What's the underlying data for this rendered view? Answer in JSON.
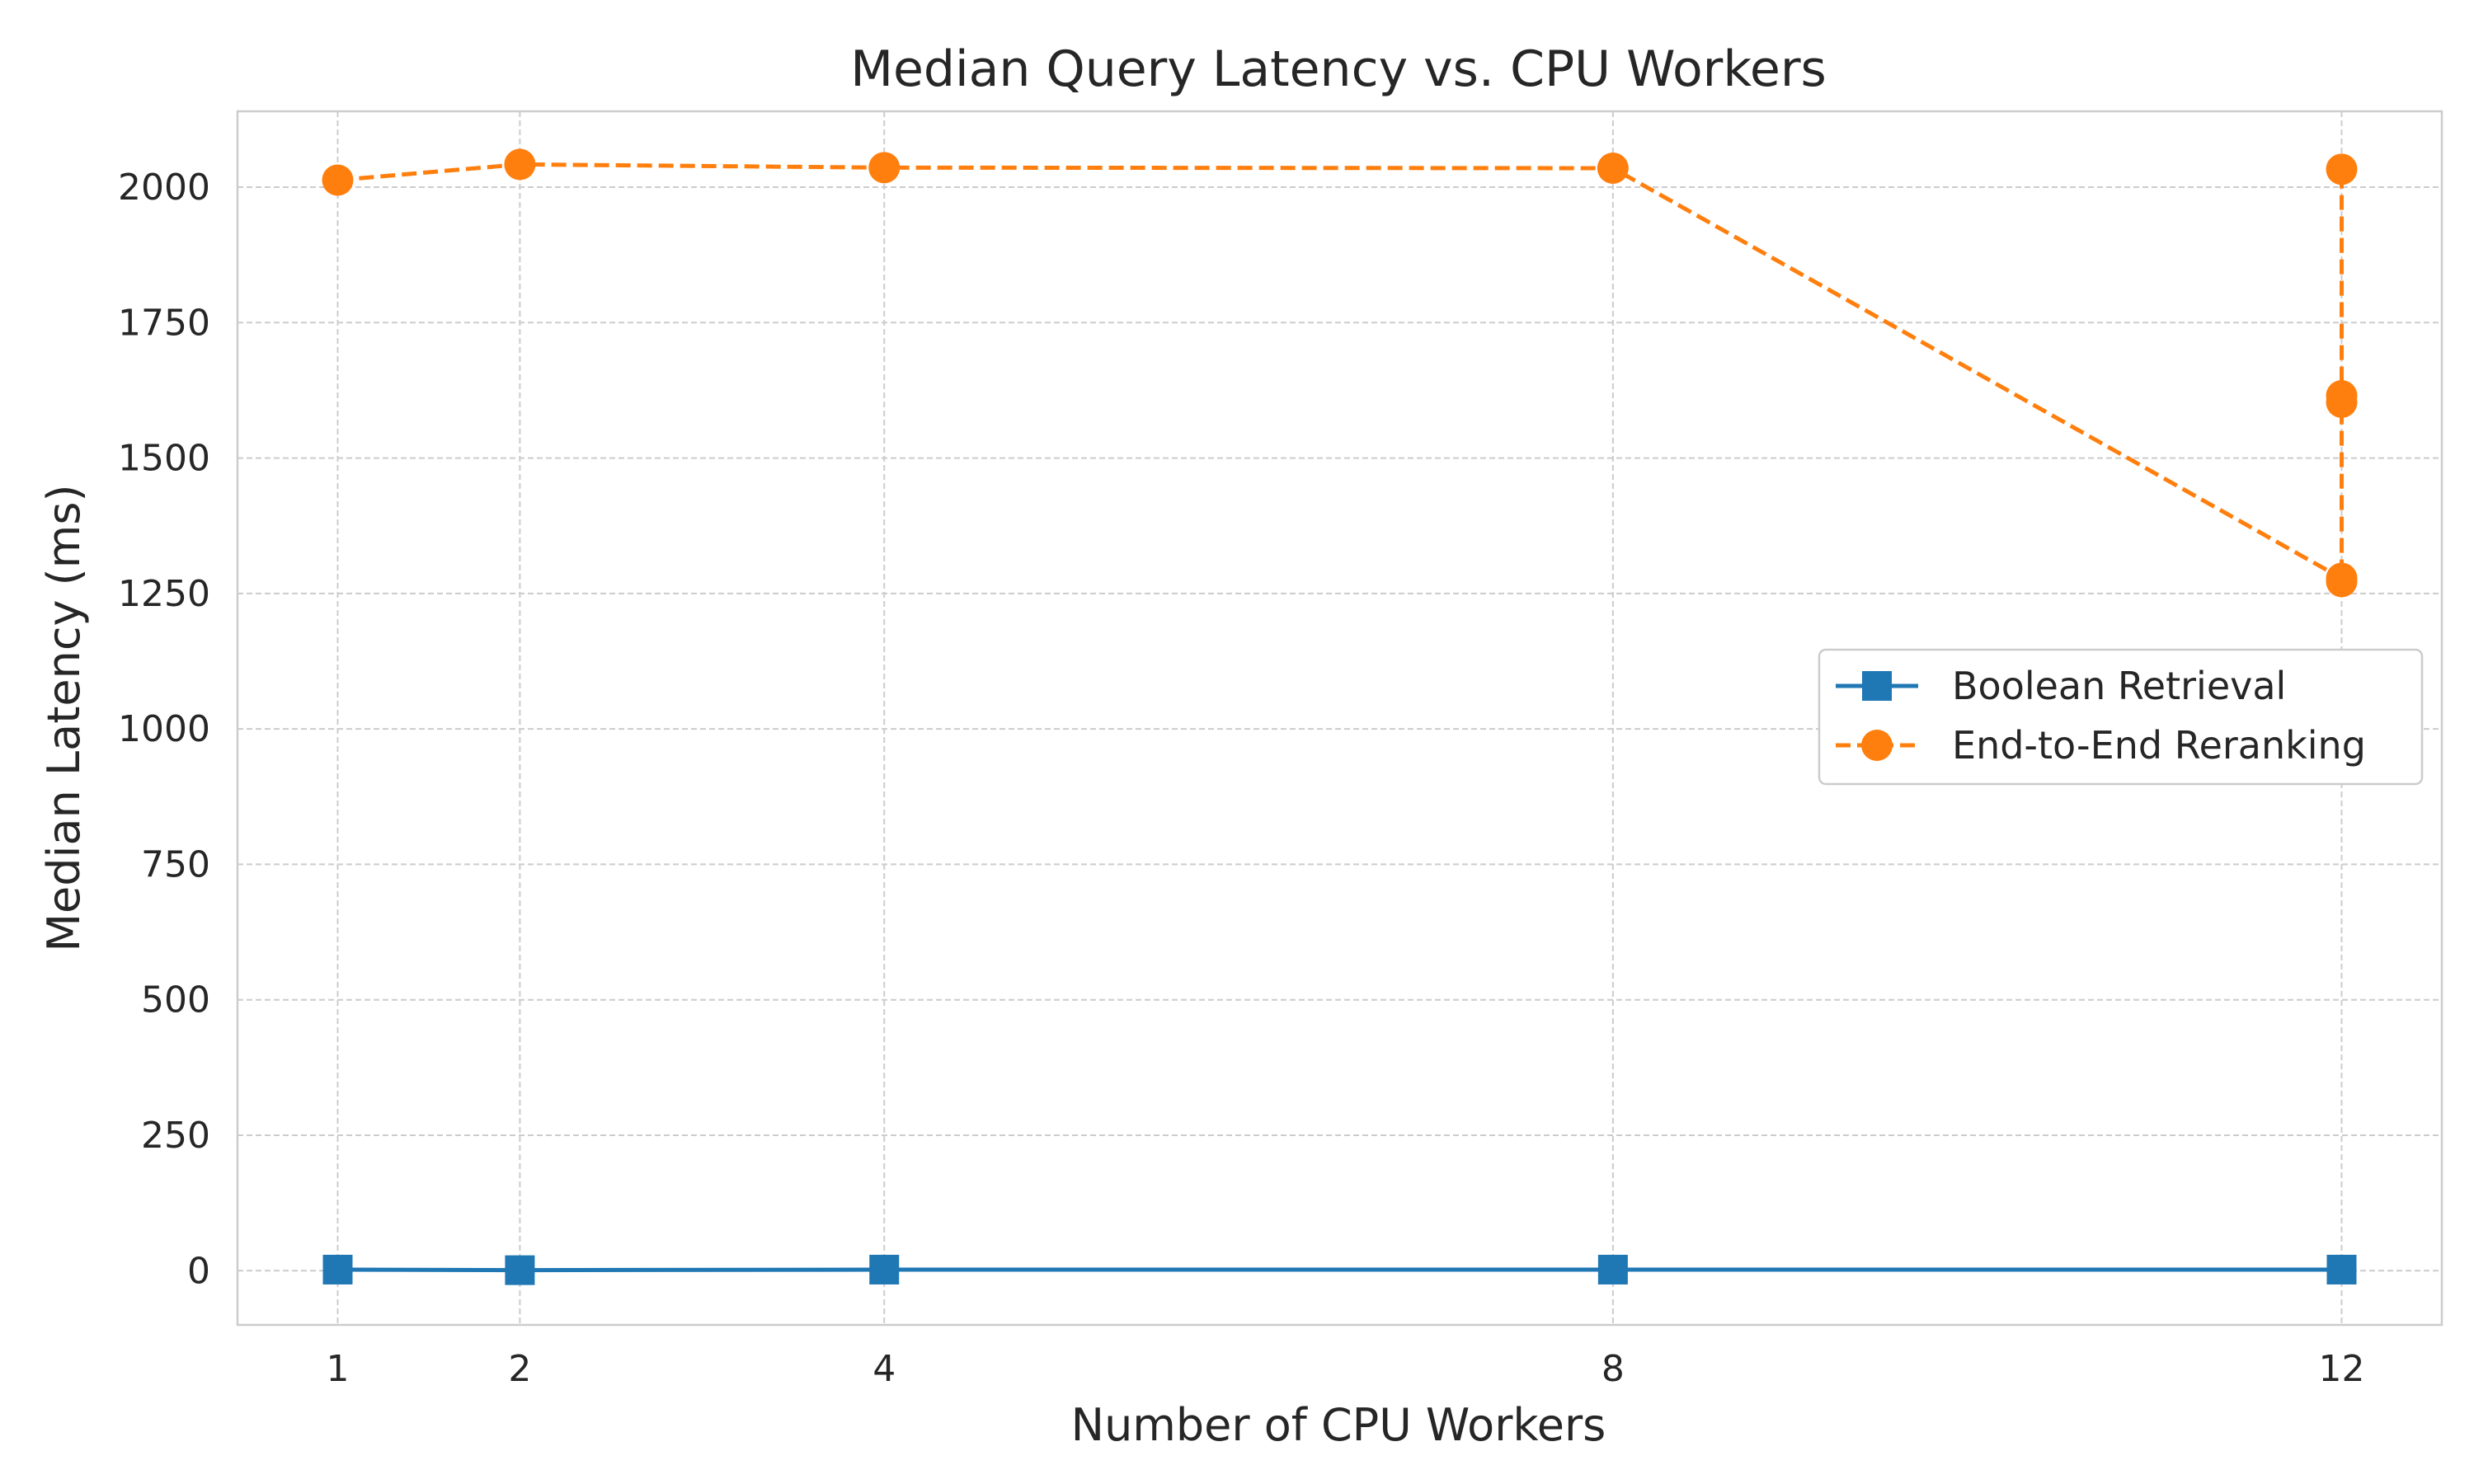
{
  "chart_data": {
    "type": "line",
    "title": "Median Query Latency vs. CPU Workers",
    "xlabel": "Number of CPU Workers",
    "ylabel": "Median Latency (ms)",
    "x_ticks": [
      1,
      2,
      4,
      8,
      12
    ],
    "y_ticks": [
      0,
      250,
      500,
      750,
      1000,
      1250,
      1500,
      1750,
      2000
    ],
    "xlim": [
      0.45,
      12.55
    ],
    "ylim": [
      -100,
      2140
    ],
    "grid": true,
    "legend_position": "center-right",
    "series": [
      {
        "name": "Boolean Retrieval",
        "color": "#1f77b4",
        "marker": "square",
        "linestyle": "solid",
        "x": [
          1,
          2,
          4,
          8,
          12
        ],
        "y": [
          2,
          1,
          2,
          2,
          2
        ]
      },
      {
        "name": "End-to-End Reranking",
        "color": "#ff7f0e",
        "marker": "circle",
        "linestyle": "dashed",
        "x": [
          1,
          2,
          4,
          8,
          12,
          12,
          12,
          12,
          12
        ],
        "y": [
          2013,
          2042,
          2036,
          2035,
          1278,
          1272,
          1603,
          1615,
          2033
        ]
      }
    ]
  }
}
